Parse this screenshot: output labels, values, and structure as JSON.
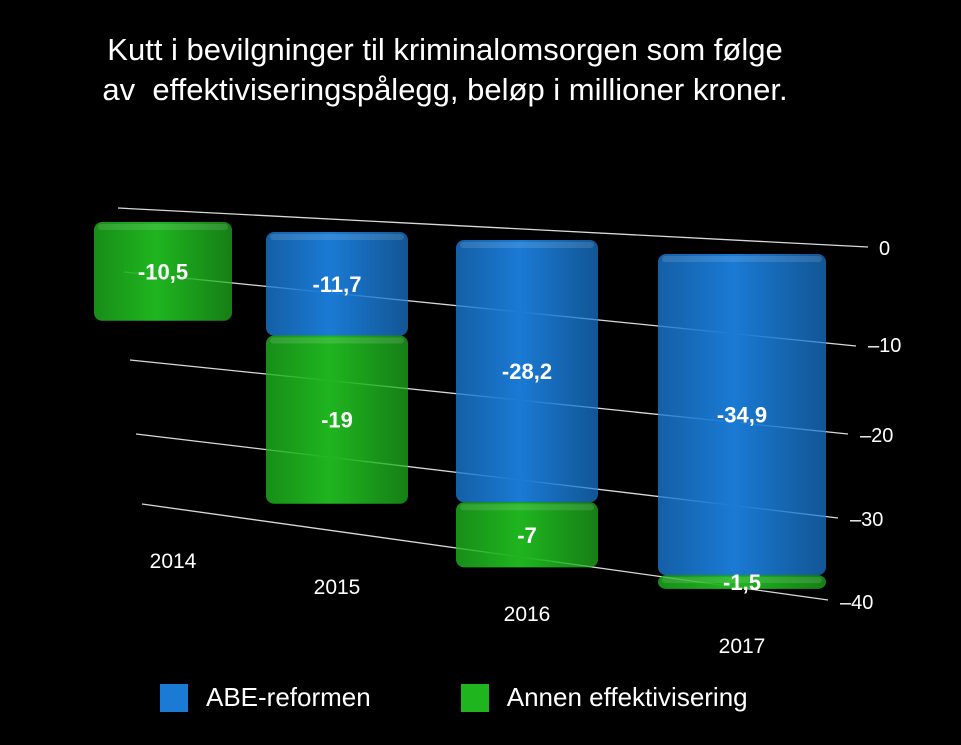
{
  "chart_data": {
    "type": "bar",
    "stacked": true,
    "title": "Kutt i bevilgninger til kriminalomsorgen som følge\nav  effektiviseringspålegg, beløp i millioner kroner.",
    "categories": [
      "2014",
      "2015",
      "2016",
      "2017"
    ],
    "series": [
      {
        "name": "ABE-reformen",
        "color": "#1a7ad4",
        "values": [
          0,
          -11.7,
          -28.2,
          -34.9
        ],
        "labels": [
          "",
          "-11,7",
          "-28,2",
          "-34,9"
        ]
      },
      {
        "name": "Annen effektivisering",
        "color": "#1fb51f",
        "values": [
          -10.5,
          -19,
          -7,
          -1.5
        ],
        "labels": [
          "-10,5",
          "-19",
          "-7",
          "-1,5"
        ]
      }
    ],
    "yticks": [
      0,
      -10,
      -20,
      -30,
      -40
    ],
    "ytick_labels": [
      "0",
      "–10",
      "–20",
      "–30",
      "–40"
    ],
    "ylim": [
      -40,
      0
    ],
    "grid": true,
    "legend_position": "bottom"
  }
}
